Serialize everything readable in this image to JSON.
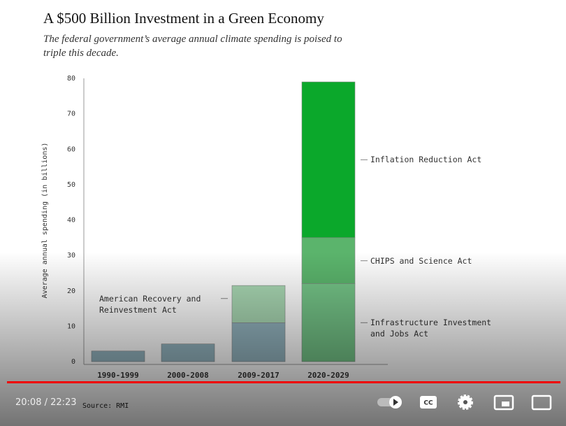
{
  "chart_data": {
    "type": "stacked_bar",
    "title": "A $500 Billion Investment in a Green Economy",
    "subtitle": "The federal government’s average annual climate spending is poised to triple this decade.",
    "y_label": "Average annual spending (in billions)",
    "source": "Source: RMI",
    "categories": [
      "1990-1999",
      "2000-2008",
      "2009-2017",
      "2020-2029"
    ],
    "series": [
      {
        "color": "#93b4bf",
        "values": [
          3,
          5,
          11,
          null
        ]
      },
      {
        "name": "American Recovery and Reinvestment Act",
        "color": "#a9d8b3",
        "values": [
          null,
          null,
          10.5,
          null
        ]
      },
      {
        "name": "Infrastructure Investment and Jobs Act",
        "color": "#74c487",
        "values": [
          null,
          null,
          null,
          22
        ]
      },
      {
        "name": "CHIPS and Science Act",
        "color": "#5bb46c",
        "values": [
          null,
          null,
          null,
          13
        ]
      },
      {
        "name": "Inflation Reduction Act",
        "color": "#0ba82b",
        "values": [
          null,
          null,
          null,
          44
        ]
      }
    ],
    "ylim": [
      0,
      80
    ],
    "yticks": [
      0,
      10,
      20,
      30,
      40,
      50,
      60,
      70,
      80
    ],
    "grid": false
  },
  "player": {
    "time": "20:08 / 22:23"
  }
}
